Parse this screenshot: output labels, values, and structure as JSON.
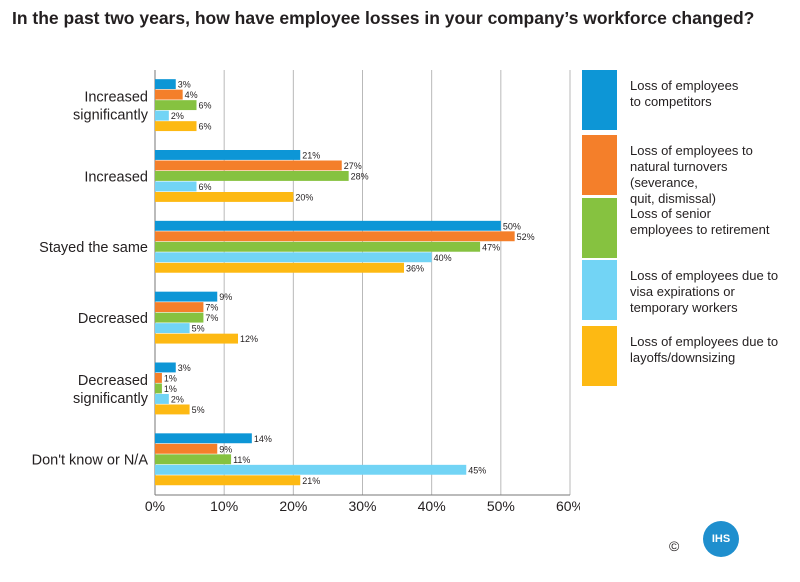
{
  "chart_data": {
    "type": "bar",
    "orientation": "horizontal",
    "title": "In the past two years, how have employee losses in your company’s workforce changed?",
    "categories": [
      [
        "Increased",
        "significantly"
      ],
      [
        "Increased"
      ],
      [
        "Stayed the same"
      ],
      [
        "Decreased"
      ],
      [
        "Decreased",
        "significantly"
      ],
      [
        "Don't know or N/A"
      ]
    ],
    "series": [
      {
        "name": "Loss of employees to competitors",
        "legend_lines": [
          "Loss of employees",
          "to competitors"
        ],
        "color": "#0d96d6",
        "values": [
          3,
          21,
          50,
          9,
          3,
          14
        ]
      },
      {
        "name": "Loss of employees to natural turnovers (severance, quit, dismissal)",
        "legend_lines": [
          "Loss of employees to",
          "natural turnovers (severance,",
          "quit, dismissal)"
        ],
        "color": "#f47f2a",
        "values": [
          4,
          27,
          52,
          7,
          1,
          9
        ]
      },
      {
        "name": "Loss of senior employees to retirement",
        "legend_lines": [
          "Loss of senior",
          "employees to retirement"
        ],
        "color": "#86c240",
        "values": [
          6,
          28,
          47,
          7,
          1,
          11
        ]
      },
      {
        "name": "Loss of employees due to visa expirations or temporary workers",
        "legend_lines": [
          "Loss of employees due to",
          "visa expirations or",
          "temporary workers"
        ],
        "color": "#72d4f5",
        "values": [
          2,
          6,
          40,
          5,
          2,
          45
        ]
      },
      {
        "name": "Loss of employees due to layoffs/downsizing",
        "legend_lines": [
          "Loss of employees due to",
          "layoffs/downsizing"
        ],
        "color": "#fdb913",
        "values": [
          6,
          20,
          36,
          12,
          5,
          21
        ]
      }
    ],
    "value_suffix": "%",
    "xlim": [
      0,
      60
    ],
    "xticks": [
      0,
      10,
      20,
      30,
      40,
      50,
      60
    ],
    "xtick_labels": [
      "0%",
      "10%",
      "20%",
      "30%",
      "40%",
      "50%",
      "60%"
    ],
    "grid": true,
    "legend_position": "right"
  },
  "footer": {
    "copyright": "©",
    "logo": "IHS"
  }
}
